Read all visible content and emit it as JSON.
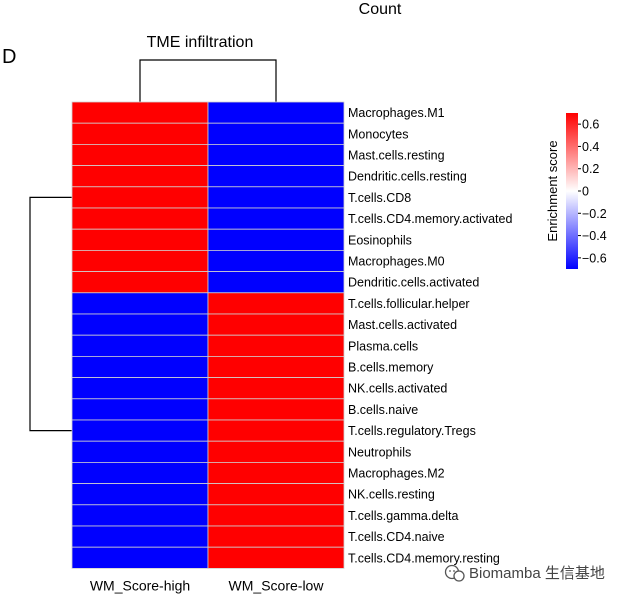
{
  "header": {
    "partial_title": "Count",
    "panel_label": "D"
  },
  "chart_data": {
    "type": "heatmap",
    "title": "TME infiltration",
    "columns": [
      "WM_Score-high",
      "WM_Score-low"
    ],
    "rows": [
      "Macrophages.M1",
      "Monocytes",
      "Mast.cells.resting",
      "Dendritic.cells.resting",
      "T.cells.CD8",
      "T.cells.CD4.memory.activated",
      "Eosinophils",
      "Macrophages.M0",
      "Dendritic.cells.activated",
      "T.cells.follicular.helper",
      "Mast.cells.activated",
      "Plasma.cells",
      "B.cells.memory",
      "NK.cells.activated",
      "B.cells.naive",
      "T.cells.regulatory.Tregs",
      "Neutrophils",
      "Macrophages.M2",
      "NK.cells.resting",
      "T.cells.gamma.delta",
      "T.cells.CD4.naive",
      "T.cells.CD4.memory.resting"
    ],
    "values": [
      [
        0.7,
        -0.7
      ],
      [
        0.7,
        -0.7
      ],
      [
        0.7,
        -0.7
      ],
      [
        0.7,
        -0.7
      ],
      [
        0.7,
        -0.7
      ],
      [
        0.7,
        -0.7
      ],
      [
        0.7,
        -0.7
      ],
      [
        0.7,
        -0.7
      ],
      [
        0.7,
        -0.7
      ],
      [
        -0.7,
        0.7
      ],
      [
        -0.7,
        0.7
      ],
      [
        -0.7,
        0.7
      ],
      [
        -0.7,
        0.7
      ],
      [
        -0.7,
        0.7
      ],
      [
        -0.7,
        0.7
      ],
      [
        -0.7,
        0.7
      ],
      [
        -0.7,
        0.7
      ],
      [
        -0.7,
        0.7
      ],
      [
        -0.7,
        0.7
      ],
      [
        -0.7,
        0.7
      ],
      [
        -0.7,
        0.7
      ],
      [
        -0.7,
        0.7
      ]
    ],
    "row_clusters": [
      9,
      13
    ],
    "colorbar": {
      "title": "Enrichment score",
      "range": [
        -0.7,
        0.7
      ],
      "tick_values": [
        0.6,
        0.4,
        0.2,
        0,
        -0.2,
        -0.4,
        -0.6
      ],
      "tick_labels": [
        "0.6",
        "0.4",
        "0.2",
        "0",
        "−0.2",
        "−0.4",
        "−0.6"
      ],
      "high_color": "#ff0000",
      "mid_color": "#ffffff",
      "low_color": "#0000ff"
    }
  },
  "watermark": {
    "text": "Biomamba 生信基地",
    "icon": "wechat-icon"
  }
}
